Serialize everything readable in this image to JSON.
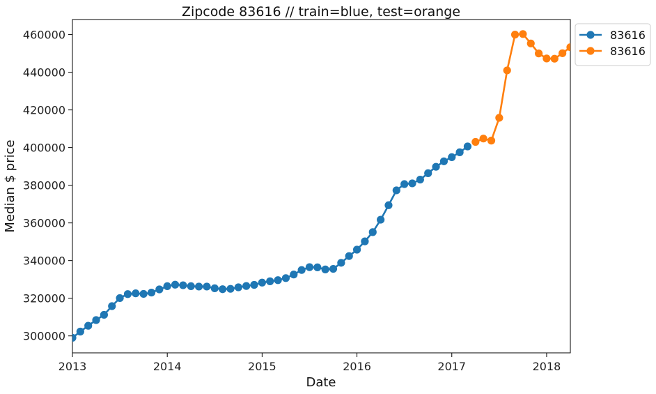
{
  "chart_data": {
    "type": "line",
    "title": "Zipcode 83616 // train=blue, test=orange",
    "xlabel": "Date",
    "ylabel": "Median $ price",
    "xlim": [
      "2013-01",
      "2018-04"
    ],
    "ylim": [
      291000,
      468000
    ],
    "x_ticks": [
      "2013",
      "2014",
      "2015",
      "2016",
      "2017",
      "2018"
    ],
    "y_ticks": [
      300000,
      320000,
      340000,
      360000,
      380000,
      400000,
      420000,
      440000,
      460000
    ],
    "grid": false,
    "legend": "outside-top-right",
    "series": [
      {
        "name": "83616",
        "color": "#1f77b4",
        "marker": "circle",
        "x": [
          "2013-01",
          "2013-02",
          "2013-03",
          "2013-04",
          "2013-05",
          "2013-06",
          "2013-07",
          "2013-08",
          "2013-09",
          "2013-10",
          "2013-11",
          "2013-12",
          "2014-01",
          "2014-02",
          "2014-03",
          "2014-04",
          "2014-05",
          "2014-06",
          "2014-07",
          "2014-08",
          "2014-09",
          "2014-10",
          "2014-11",
          "2014-12",
          "2015-01",
          "2015-02",
          "2015-03",
          "2015-04",
          "2015-05",
          "2015-06",
          "2015-07",
          "2015-08",
          "2015-09",
          "2015-10",
          "2015-11",
          "2015-12",
          "2016-01",
          "2016-02",
          "2016-03",
          "2016-04",
          "2016-05",
          "2016-06",
          "2016-07",
          "2016-08",
          "2016-09",
          "2016-10",
          "2016-11",
          "2016-12",
          "2017-01",
          "2017-02",
          "2017-03"
        ],
        "y": [
          299000,
          302300,
          305400,
          308400,
          311200,
          315800,
          320100,
          322200,
          322600,
          322300,
          323000,
          324700,
          326400,
          327200,
          326900,
          326400,
          326200,
          326200,
          325300,
          324800,
          325000,
          325800,
          326500,
          327100,
          328300,
          329000,
          329600,
          330700,
          332600,
          335000,
          336500,
          336400,
          335300,
          335600,
          338800,
          342400,
          345800,
          350200,
          355100,
          361700,
          369400,
          377300,
          380600,
          381000,
          383000,
          386400,
          389800,
          392700,
          394900,
          397500,
          400600
        ]
      },
      {
        "name": "83616",
        "color": "#ff7f0e",
        "marker": "circle",
        "x": [
          "2017-04",
          "2017-05",
          "2017-06",
          "2017-07",
          "2017-08",
          "2017-09",
          "2017-10",
          "2017-11",
          "2017-12",
          "2018-01",
          "2018-02",
          "2018-03",
          "2018-04"
        ],
        "y": [
          403000,
          404800,
          403700,
          415800,
          441000,
          460000,
          460300,
          455300,
          450000,
          447300,
          447200,
          450100,
          453300
        ]
      }
    ]
  }
}
